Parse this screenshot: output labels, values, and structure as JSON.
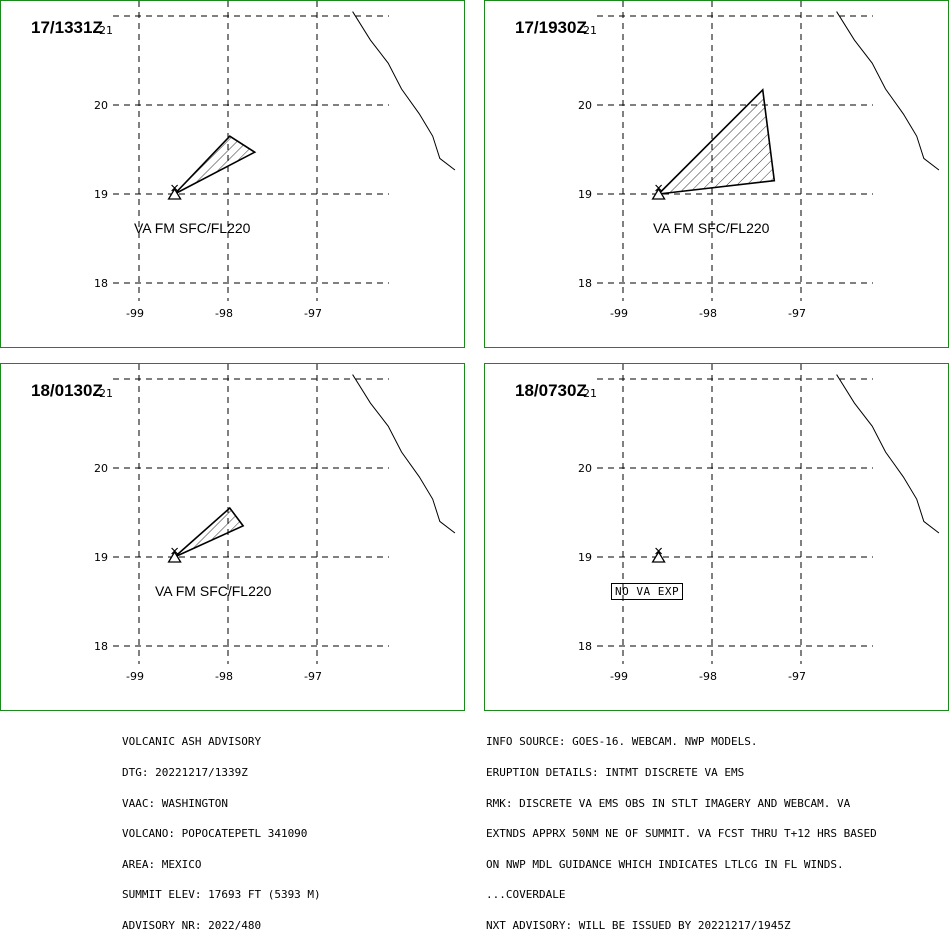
{
  "panels": [
    {
      "time": "17/1331Z",
      "label": "VA FM SFC/FL220",
      "label_boxed": false,
      "ash_polygon": [
        [
          -98.6,
          19.0
        ],
        [
          -97.98,
          19.65
        ],
        [
          -97.7,
          19.47
        ]
      ]
    },
    {
      "time": "17/1930Z",
      "label": "VA FM SFC/FL220",
      "label_boxed": false,
      "ash_polygon": [
        [
          -98.6,
          19.0
        ],
        [
          -97.43,
          20.17
        ],
        [
          -97.3,
          19.15
        ]
      ]
    },
    {
      "time": "18/0130Z",
      "label": "VA FM SFC/FL220",
      "label_boxed": false,
      "ash_polygon": [
        [
          -98.6,
          19.0
        ],
        [
          -97.98,
          19.55
        ],
        [
          -97.83,
          19.35
        ]
      ]
    },
    {
      "time": "18/0730Z",
      "label": "NO VA EXP",
      "label_boxed": true,
      "ash_polygon": []
    }
  ],
  "map": {
    "lat_ticks": [
      "21",
      "20",
      "19",
      "18"
    ],
    "lon_ticks": [
      "-99",
      "-98",
      "-97"
    ],
    "volcano": {
      "lon": -98.6,
      "lat": 19.0
    },
    "coastline": [
      [
        -96.6,
        21.05
      ],
      [
        -96.4,
        20.73
      ],
      [
        -96.2,
        20.47
      ],
      [
        -96.05,
        20.18
      ],
      [
        -95.85,
        19.9
      ],
      [
        -95.7,
        19.65
      ],
      [
        -95.62,
        19.4
      ],
      [
        -95.45,
        19.27
      ]
    ]
  },
  "advisory_left": [
    "VOLCANIC ASH ADVISORY",
    "DTG: 20221217/1339Z",
    "VAAC: WASHINGTON",
    "VOLCANO: POPOCATEPETL 341090",
    "AREA: MEXICO",
    "SUMMIT ELEV: 17693 FT (5393 M)",
    "ADVISORY NR: 2022/480"
  ],
  "advisory_right": [
    "INFO SOURCE: GOES-16. WEBCAM. NWP MODELS.",
    "ERUPTION DETAILS: INTMT DISCRETE VA EMS",
    "RMK: DISCRETE VA EMS OBS IN STLT IMAGERY AND WEBCAM. VA",
    "EXTNDS APPRX 50NM NE OF SUMMIT. VA FCST THRU T+12 HRS BASED",
    "ON NWP MDL GUIDANCE WHICH INDICATES LTLCG IN FL WINDS.",
    "...COVERDALE",
    "NXT ADVISORY: WILL BE ISSUED BY 20221217/1945Z"
  ]
}
